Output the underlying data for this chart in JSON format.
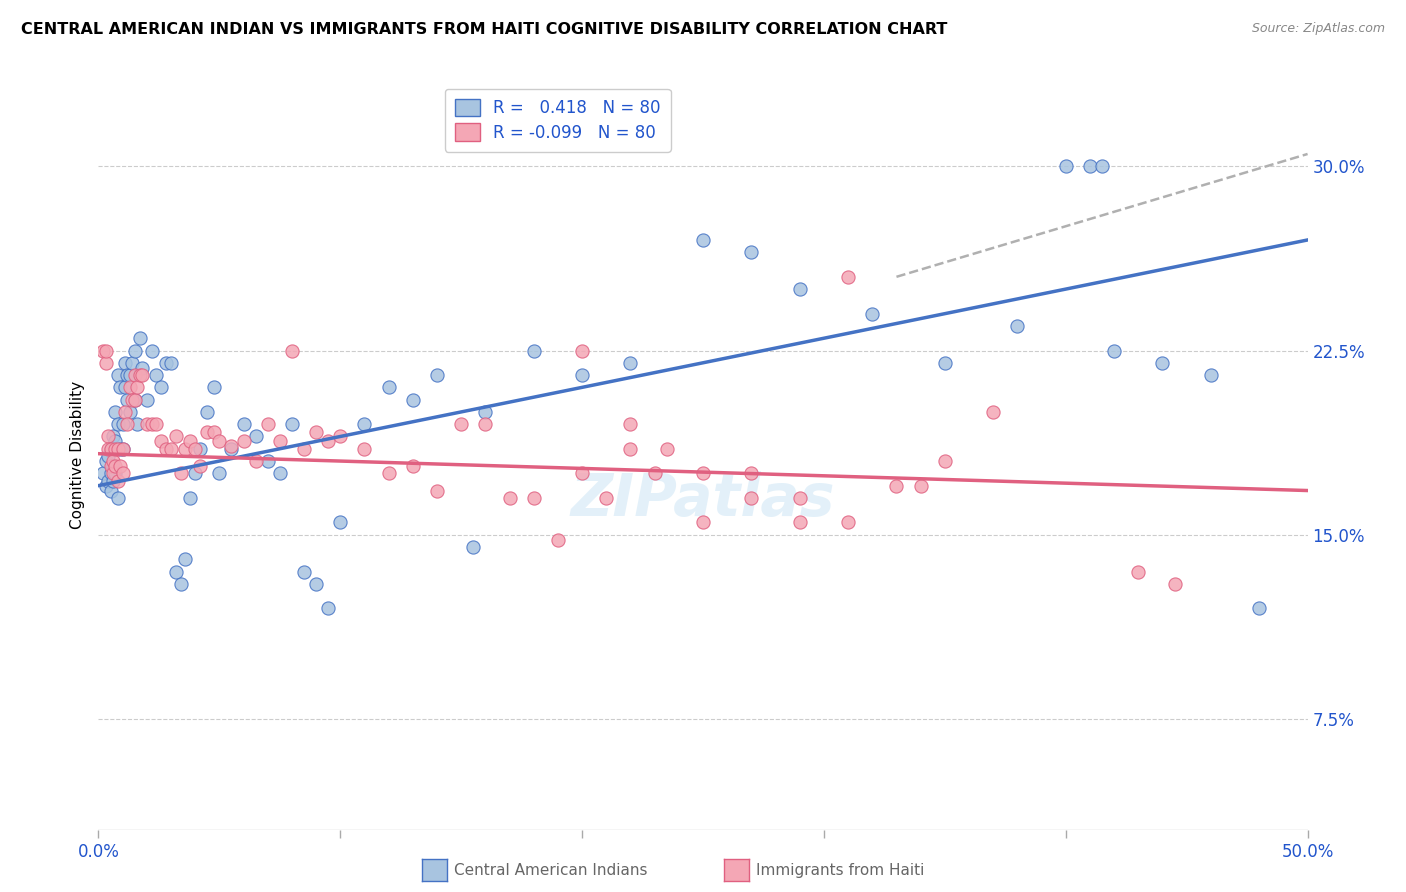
{
  "title": "CENTRAL AMERICAN INDIAN VS IMMIGRANTS FROM HAITI COGNITIVE DISABILITY CORRELATION CHART",
  "source": "Source: ZipAtlas.com",
  "ylabel": "Cognitive Disability",
  "yticks": [
    "7.5%",
    "15.0%",
    "22.5%",
    "30.0%"
  ],
  "ytick_vals": [
    0.075,
    0.15,
    0.225,
    0.3
  ],
  "xlim": [
    0.0,
    0.5
  ],
  "ylim": [
    0.03,
    0.335
  ],
  "legend_label1": "Central American Indians",
  "legend_label2": "Immigrants from Haiti",
  "legend_r1": "R =   0.418",
  "legend_r2": "R = -0.099",
  "legend_n1": "N = 80",
  "legend_n2": "N = 80",
  "color_blue": "#a8c4e0",
  "color_pink": "#f4a7b5",
  "line_blue": "#4472c4",
  "line_pink": "#e06080",
  "line_dash": "#b0b0b0",
  "blue_line_x": [
    0.0,
    0.5
  ],
  "blue_line_y": [
    0.17,
    0.27
  ],
  "pink_line_x": [
    0.0,
    0.5
  ],
  "pink_line_y": [
    0.183,
    0.168
  ],
  "dash_line_x": [
    0.33,
    0.5
  ],
  "dash_line_y": [
    0.255,
    0.305
  ],
  "blue_x": [
    0.002,
    0.003,
    0.003,
    0.004,
    0.004,
    0.005,
    0.005,
    0.005,
    0.006,
    0.006,
    0.006,
    0.007,
    0.007,
    0.007,
    0.008,
    0.008,
    0.008,
    0.009,
    0.009,
    0.01,
    0.01,
    0.011,
    0.011,
    0.012,
    0.012,
    0.013,
    0.013,
    0.014,
    0.015,
    0.015,
    0.016,
    0.017,
    0.018,
    0.02,
    0.022,
    0.024,
    0.026,
    0.028,
    0.03,
    0.032,
    0.034,
    0.036,
    0.038,
    0.04,
    0.042,
    0.045,
    0.048,
    0.05,
    0.055,
    0.06,
    0.065,
    0.07,
    0.075,
    0.08,
    0.085,
    0.09,
    0.095,
    0.1,
    0.11,
    0.12,
    0.13,
    0.14,
    0.155,
    0.16,
    0.18,
    0.2,
    0.22,
    0.25,
    0.27,
    0.29,
    0.32,
    0.35,
    0.38,
    0.4,
    0.41,
    0.415,
    0.42,
    0.44,
    0.46,
    0.48
  ],
  "blue_y": [
    0.175,
    0.17,
    0.18,
    0.172,
    0.182,
    0.168,
    0.175,
    0.185,
    0.172,
    0.178,
    0.19,
    0.175,
    0.188,
    0.2,
    0.165,
    0.195,
    0.215,
    0.185,
    0.21,
    0.185,
    0.195,
    0.22,
    0.21,
    0.205,
    0.215,
    0.2,
    0.215,
    0.22,
    0.205,
    0.225,
    0.195,
    0.23,
    0.218,
    0.205,
    0.225,
    0.215,
    0.21,
    0.22,
    0.22,
    0.135,
    0.13,
    0.14,
    0.165,
    0.175,
    0.185,
    0.2,
    0.21,
    0.175,
    0.185,
    0.195,
    0.19,
    0.18,
    0.175,
    0.195,
    0.135,
    0.13,
    0.12,
    0.155,
    0.195,
    0.21,
    0.205,
    0.215,
    0.145,
    0.2,
    0.225,
    0.215,
    0.22,
    0.27,
    0.265,
    0.25,
    0.24,
    0.22,
    0.235,
    0.3,
    0.3,
    0.3,
    0.225,
    0.22,
    0.215,
    0.12
  ],
  "pink_x": [
    0.002,
    0.003,
    0.003,
    0.004,
    0.004,
    0.005,
    0.005,
    0.006,
    0.006,
    0.007,
    0.007,
    0.008,
    0.008,
    0.009,
    0.01,
    0.01,
    0.011,
    0.012,
    0.013,
    0.014,
    0.015,
    0.015,
    0.016,
    0.017,
    0.018,
    0.02,
    0.022,
    0.024,
    0.026,
    0.028,
    0.03,
    0.032,
    0.034,
    0.036,
    0.038,
    0.04,
    0.042,
    0.045,
    0.048,
    0.05,
    0.055,
    0.06,
    0.065,
    0.07,
    0.075,
    0.08,
    0.085,
    0.09,
    0.095,
    0.1,
    0.11,
    0.12,
    0.13,
    0.14,
    0.15,
    0.16,
    0.17,
    0.18,
    0.19,
    0.2,
    0.21,
    0.22,
    0.23,
    0.25,
    0.27,
    0.29,
    0.31,
    0.33,
    0.35,
    0.37,
    0.2,
    0.22,
    0.235,
    0.25,
    0.27,
    0.29,
    0.31,
    0.34,
    0.43,
    0.445
  ],
  "pink_y": [
    0.225,
    0.22,
    0.225,
    0.19,
    0.185,
    0.178,
    0.185,
    0.175,
    0.18,
    0.178,
    0.185,
    0.172,
    0.185,
    0.178,
    0.175,
    0.185,
    0.2,
    0.195,
    0.21,
    0.205,
    0.215,
    0.205,
    0.21,
    0.215,
    0.215,
    0.195,
    0.195,
    0.195,
    0.188,
    0.185,
    0.185,
    0.19,
    0.175,
    0.185,
    0.188,
    0.185,
    0.178,
    0.192,
    0.192,
    0.188,
    0.186,
    0.188,
    0.18,
    0.195,
    0.188,
    0.225,
    0.185,
    0.192,
    0.188,
    0.19,
    0.185,
    0.175,
    0.178,
    0.168,
    0.195,
    0.195,
    0.165,
    0.165,
    0.148,
    0.175,
    0.165,
    0.185,
    0.175,
    0.175,
    0.175,
    0.165,
    0.155,
    0.17,
    0.18,
    0.2,
    0.225,
    0.195,
    0.185,
    0.155,
    0.165,
    0.155,
    0.255,
    0.17,
    0.135,
    0.13
  ]
}
